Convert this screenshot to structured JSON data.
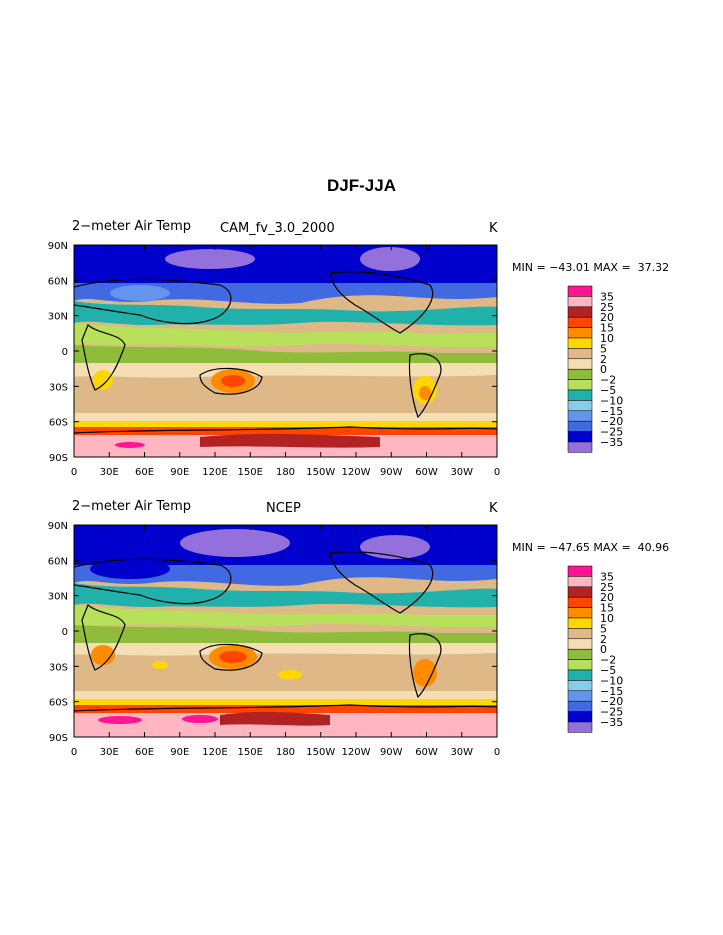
{
  "title": "DJF-JJA",
  "lat_labels": [
    "90N",
    "60N",
    "30N",
    "0",
    "30S",
    "60S",
    "90S"
  ],
  "lon_labels": [
    "0",
    "30E",
    "60E",
    "90E",
    "120E",
    "150E",
    "180",
    "150W",
    "120W",
    "90W",
    "60W",
    "30W",
    "0"
  ],
  "colorbar_labels": [
    "35",
    "25",
    "20",
    "15",
    "10",
    "5",
    "2",
    "0",
    "−2",
    "−5",
    "−10",
    "−15",
    "−20",
    "−25",
    "−35"
  ],
  "colorbar_colors": [
    "#FF1493",
    "#FFB6C1",
    "#B22222",
    "#FF4500",
    "#FF8C00",
    "#FFD700",
    "#DEB887",
    "#F5DEB3",
    "#8FBC3A",
    "#B8E05A",
    "#20B2AA",
    "#87CEEB",
    "#6495ED",
    "#4169E1",
    "#0000CD",
    "#9370DB"
  ],
  "panels": [
    {
      "left_title": "2−meter Air Temp",
      "center_title": "CAM_fv_3.0_2000",
      "units": "K",
      "min_label": "MIN = ",
      "min_value": "−43.01",
      "max_label": " MAX = ",
      "max_value": " 37.32"
    },
    {
      "left_title": "2−meter Air Temp",
      "center_title": "NCEP",
      "units": "K",
      "min_label": "MIN = ",
      "min_value": "−47.65",
      "max_label": " MAX = ",
      "max_value": " 40.96"
    }
  ]
}
